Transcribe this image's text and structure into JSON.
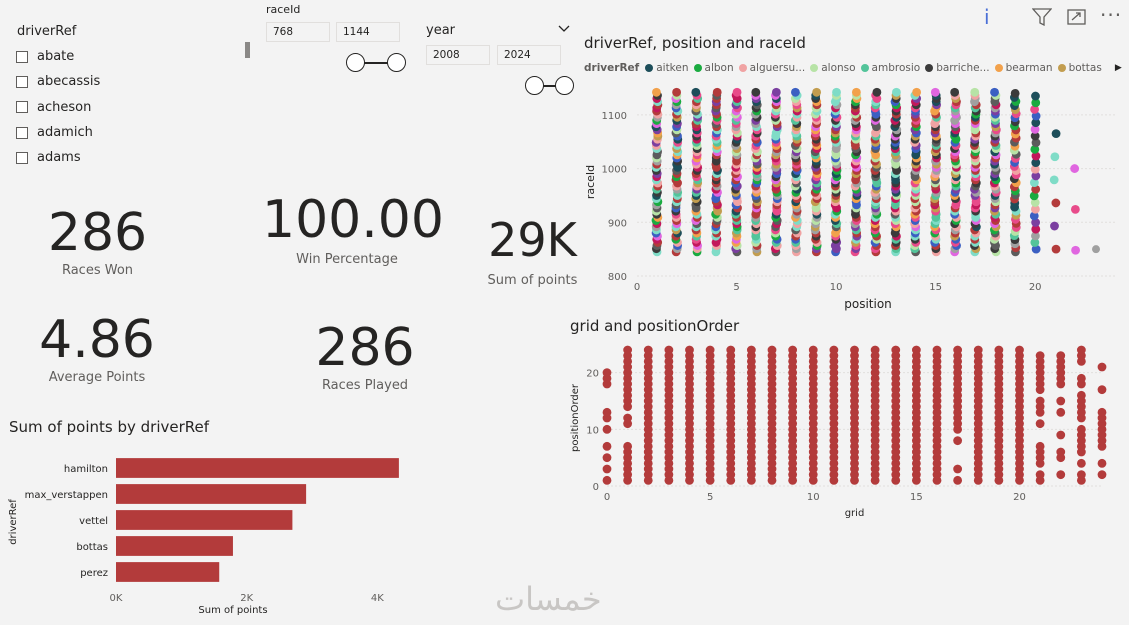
{
  "slicer": {
    "title": "driverRef",
    "items": [
      {
        "label": "abate"
      },
      {
        "label": "abecassis"
      },
      {
        "label": "acheson"
      },
      {
        "label": "adamich"
      },
      {
        "label": "adams"
      }
    ]
  },
  "raceId_slicer": {
    "label": "raceId",
    "min": "768",
    "max": "1144"
  },
  "year_slicer": {
    "label": "year",
    "min": "2008",
    "max": "2024"
  },
  "cards": {
    "races_won": {
      "value": "286",
      "label": "Races Won"
    },
    "win_pct": {
      "value": "100.00",
      "label": "Win Percentage"
    },
    "sum_points": {
      "value": "29K",
      "label": "Sum of points"
    },
    "avg_points": {
      "value": "4.86",
      "label": "Average Points"
    },
    "races_played": {
      "value": "286",
      "label": "Races Played"
    }
  },
  "toolbar": {
    "info_icon": "info-icon",
    "filter_icon": "filter-icon",
    "focus_icon": "focus-mode-icon",
    "more_icon": "more-options-icon"
  },
  "scatter1": {
    "title": "driverRef, position and raceId",
    "legend_title": "driverRef",
    "legend": [
      {
        "name": "aitken",
        "color": "#1d4e5a"
      },
      {
        "name": "albon",
        "color": "#1aab40"
      },
      {
        "name": "alguersu...",
        "color": "#f0a3a3"
      },
      {
        "name": "alonso",
        "color": "#b7e3a6"
      },
      {
        "name": "ambrosio",
        "color": "#53c49a"
      },
      {
        "name": "barriche...",
        "color": "#3b3b3b"
      },
      {
        "name": "bearman",
        "color": "#f2a14b"
      },
      {
        "name": "bottas",
        "color": "#c29d4f"
      }
    ]
  },
  "scatter2": {
    "title": "grid and positionOrder"
  },
  "bar": {
    "title": "Sum of points by driverRef"
  },
  "chart_data": [
    {
      "type": "scatter",
      "title": "driverRef, position and raceId",
      "xlabel": "position",
      "ylabel": "raceId",
      "xlim": [
        0,
        22
      ],
      "ylim": [
        800,
        1150
      ],
      "xticks": [
        0,
        5,
        10,
        15,
        20
      ],
      "yticks": [
        800,
        900,
        1000,
        1100
      ],
      "x_positions": [
        1,
        2,
        3,
        4,
        5,
        6,
        7,
        8,
        9,
        10,
        11,
        12,
        13,
        14,
        15,
        16,
        17,
        18,
        19,
        20,
        21,
        22
      ]
    },
    {
      "type": "scatter",
      "title": "grid and positionOrder",
      "xlabel": "grid",
      "ylabel": "positionOrder",
      "xlim": [
        0,
        24
      ],
      "ylim": [
        0,
        24
      ],
      "xticks": [
        0,
        5,
        10,
        15,
        20
      ],
      "yticks": [
        0,
        10,
        20
      ],
      "color": "#b33b3b"
    },
    {
      "type": "bar",
      "orientation": "horizontal",
      "title": "Sum of points by driverRef",
      "xlabel": "Sum of points",
      "ylabel": "driverRef",
      "categories": [
        "hamilton",
        "max_verstappen",
        "vettel",
        "bottas",
        "perez"
      ],
      "values": [
        4330,
        2910,
        2700,
        1790,
        1580
      ],
      "xlim": [
        0,
        4500
      ],
      "xticks": [
        "0K",
        "2K",
        "4K"
      ],
      "color": "#b33b3b"
    }
  ],
  "watermark": "خمسات"
}
